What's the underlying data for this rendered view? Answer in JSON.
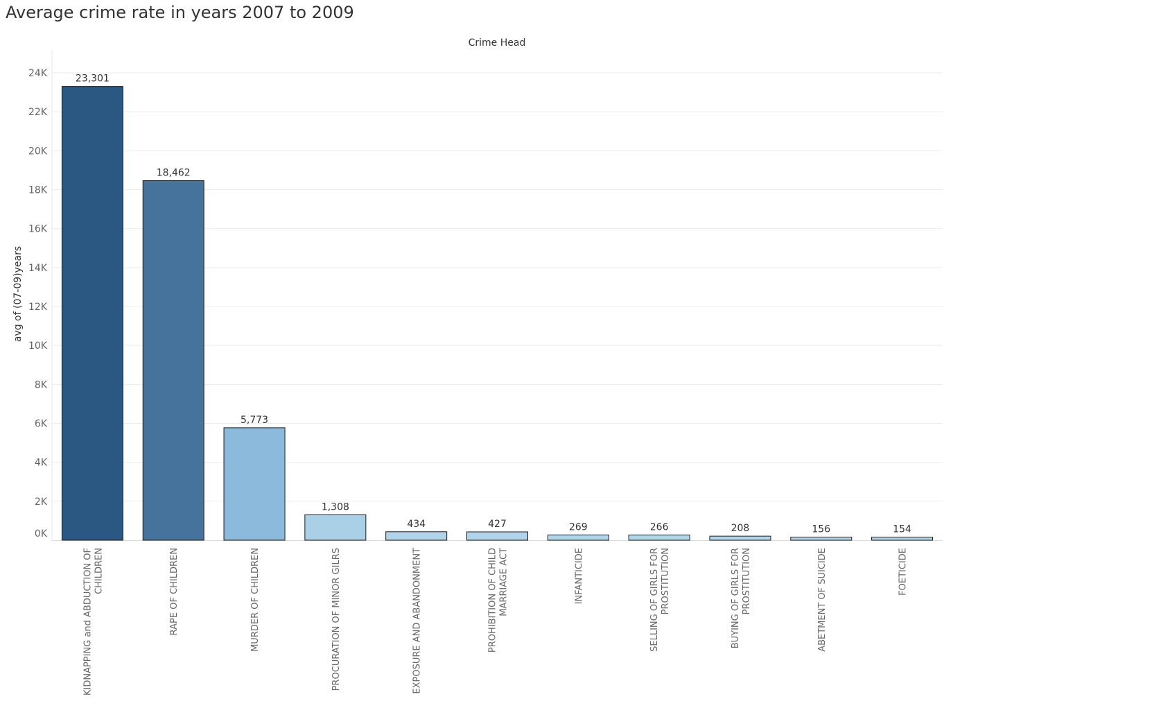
{
  "chart_data": {
    "type": "bar",
    "title": "Average crime rate in years 2007 to 2009",
    "column_header": "Crime Head",
    "ylabel": "avg of (07-09)years",
    "ylim": [
      0,
      24000
    ],
    "y_ticks": [
      {
        "value": 24000,
        "label": "24K"
      },
      {
        "value": 22000,
        "label": "22K"
      },
      {
        "value": 20000,
        "label": "20K"
      },
      {
        "value": 18000,
        "label": "18K"
      },
      {
        "value": 16000,
        "label": "16K"
      },
      {
        "value": 14000,
        "label": "14K"
      },
      {
        "value": 12000,
        "label": "12K"
      },
      {
        "value": 10000,
        "label": "10K"
      },
      {
        "value": 8000,
        "label": "8K"
      },
      {
        "value": 6000,
        "label": "6K"
      },
      {
        "value": 4000,
        "label": "4K"
      },
      {
        "value": 2000,
        "label": "2K"
      },
      {
        "value": 0,
        "label": "0K"
      }
    ],
    "grid": true,
    "categories": [
      [
        "KIDNAPPING and ABDUCTION OF",
        "CHILDREN"
      ],
      [
        "RAPE OF CHILDREN"
      ],
      [
        "MURDER OF CHILDREN"
      ],
      [
        "PROCURATION OF MINOR GILRS"
      ],
      [
        "EXPOSURE AND ABANDONMENT"
      ],
      [
        "PROHIBITION OF CHILD",
        "MARRIAGE ACT"
      ],
      [
        "INFANTICIDE"
      ],
      [
        "SELLING OF GIRLS FOR",
        "PROSTITUTION"
      ],
      [
        "BUYING OF GIRLS FOR",
        "PROSTITUTION"
      ],
      [
        "ABETMENT OF SUICIDE"
      ],
      [
        "FOETICIDE"
      ]
    ],
    "values": [
      23301,
      18462,
      5773,
      1308,
      434,
      427,
      269,
      266,
      208,
      156,
      154
    ],
    "value_labels": [
      "23,301",
      "18,462",
      "5,773",
      "1,308",
      "434",
      "427",
      "269",
      "266",
      "208",
      "156",
      "154"
    ],
    "color_scale": {
      "low": "#b3d7ec",
      "mid": "#8cbadc",
      "high": "#2b5882"
    }
  }
}
